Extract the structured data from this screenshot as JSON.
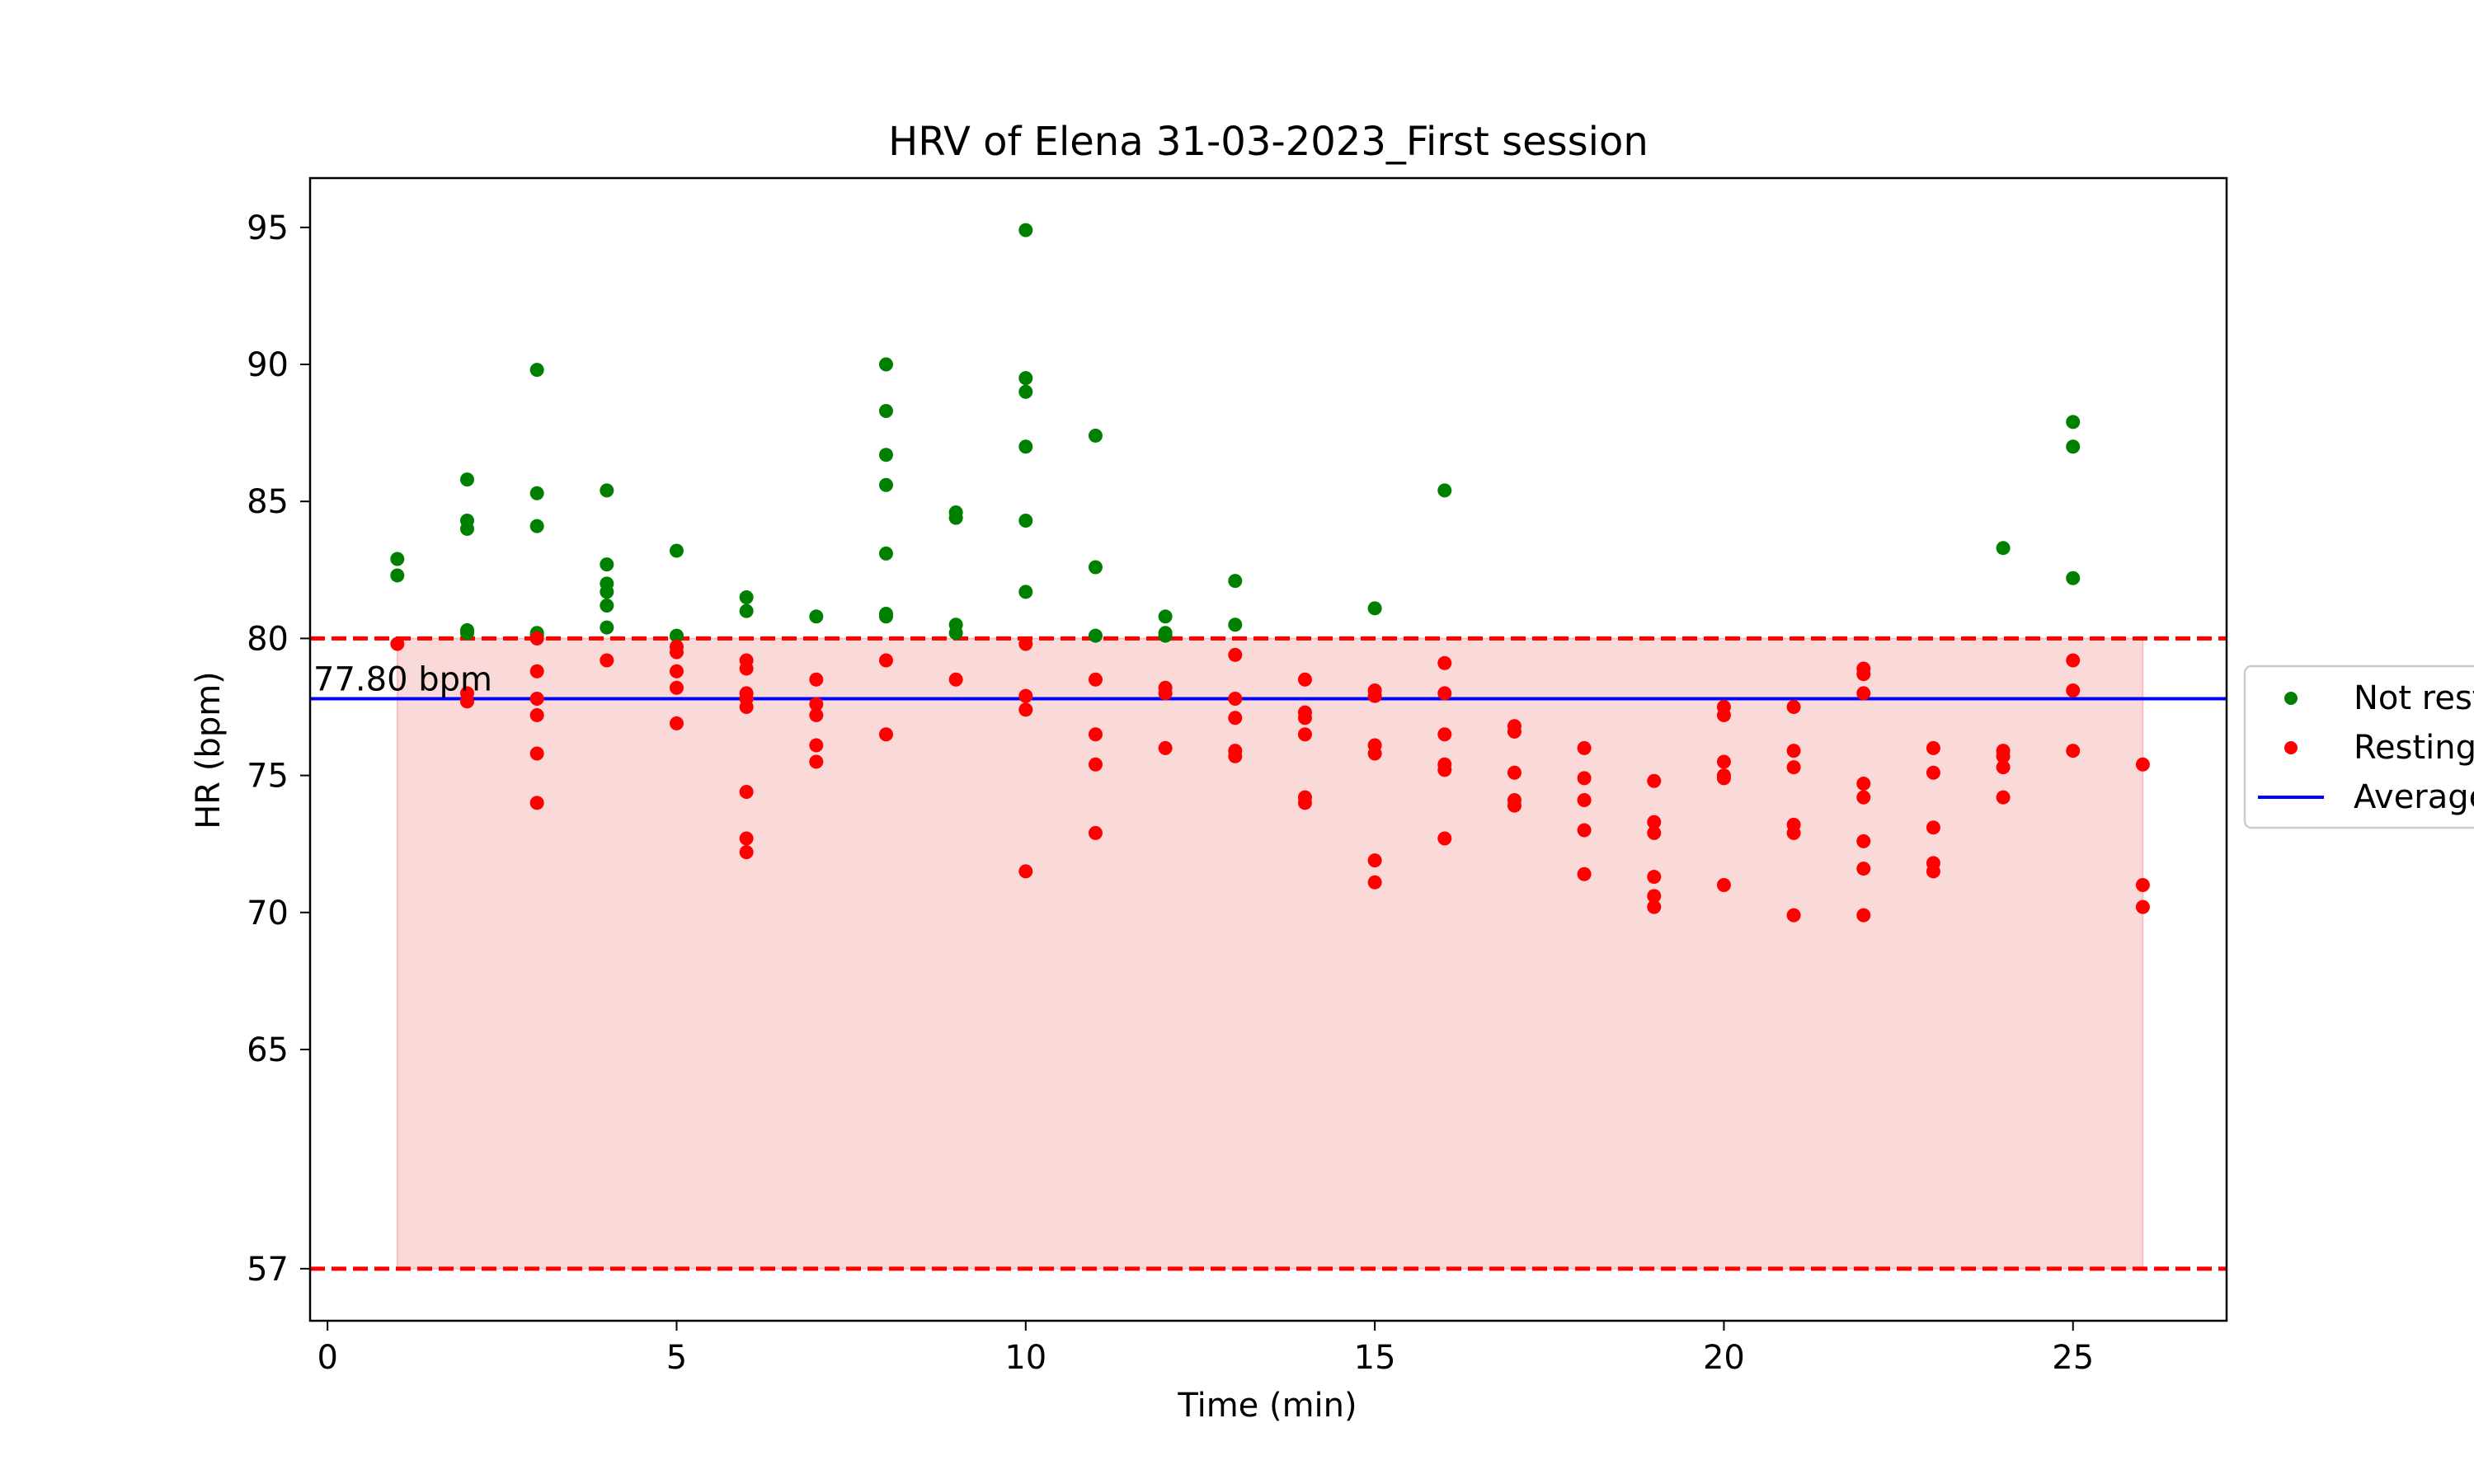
{
  "chart_data": {
    "type": "scatter",
    "title": "HRV of Elena 31-03-2023_First session",
    "xlabel": "Time (min)",
    "ylabel": "HR (bpm)",
    "xlim": [
      -0.25,
      27.2
    ],
    "ylim": [
      55.1,
      96.8
    ],
    "xticks": [
      0,
      5,
      10,
      15,
      20,
      25
    ],
    "yticks": [
      57,
      65,
      70,
      75,
      80,
      85,
      90,
      95
    ],
    "grid": false,
    "legend_position": "right, outside plot (clipped)",
    "series": [
      {
        "name": "Not resting",
        "color": "#008000",
        "points": [
          [
            1,
            82.9
          ],
          [
            1,
            82.3
          ],
          [
            2,
            85.8
          ],
          [
            2,
            84.3
          ],
          [
            2,
            84.0
          ],
          [
            2,
            80.3
          ],
          [
            2,
            80.2
          ],
          [
            3,
            89.8
          ],
          [
            3,
            85.3
          ],
          [
            3,
            84.1
          ],
          [
            3,
            80.2
          ],
          [
            3,
            80.1
          ],
          [
            4,
            85.4
          ],
          [
            4,
            82.7
          ],
          [
            4,
            82.0
          ],
          [
            4,
            81.7
          ],
          [
            4,
            81.2
          ],
          [
            4,
            80.4
          ],
          [
            5,
            83.2
          ],
          [
            5,
            80.1
          ],
          [
            6,
            81.5
          ],
          [
            6,
            81.0
          ],
          [
            7,
            80.8
          ],
          [
            8,
            90.0
          ],
          [
            8,
            88.3
          ],
          [
            8,
            86.7
          ],
          [
            8,
            85.6
          ],
          [
            8,
            83.1
          ],
          [
            8,
            80.9
          ],
          [
            8,
            80.8
          ],
          [
            9,
            84.6
          ],
          [
            9,
            84.4
          ],
          [
            9,
            80.5
          ],
          [
            9,
            80.2
          ],
          [
            10,
            94.9
          ],
          [
            10,
            89.5
          ],
          [
            10,
            89.0
          ],
          [
            10,
            87.0
          ],
          [
            10,
            84.3
          ],
          [
            10,
            81.7
          ],
          [
            11,
            87.4
          ],
          [
            11,
            82.6
          ],
          [
            11,
            80.1
          ],
          [
            12,
            80.8
          ],
          [
            12,
            80.2
          ],
          [
            12,
            80.1
          ],
          [
            13,
            82.1
          ],
          [
            13,
            80.5
          ],
          [
            15,
            81.1
          ],
          [
            16,
            85.4
          ],
          [
            24,
            83.3
          ],
          [
            25,
            87.9
          ],
          [
            25,
            87.0
          ],
          [
            25,
            82.2
          ]
        ]
      },
      {
        "name": "Resting",
        "color": "#ff0000",
        "points": [
          [
            1,
            79.8
          ],
          [
            2,
            78.0
          ],
          [
            2,
            77.7
          ],
          [
            3,
            80.0
          ],
          [
            3,
            78.8
          ],
          [
            3,
            77.8
          ],
          [
            3,
            77.2
          ],
          [
            3,
            75.8
          ],
          [
            3,
            74.0
          ],
          [
            4,
            79.2
          ],
          [
            5,
            79.7
          ],
          [
            5,
            79.5
          ],
          [
            5,
            78.8
          ],
          [
            5,
            78.2
          ],
          [
            5,
            76.9
          ],
          [
            6,
            79.2
          ],
          [
            6,
            78.9
          ],
          [
            6,
            78.0
          ],
          [
            6,
            77.8
          ],
          [
            6,
            77.5
          ],
          [
            6,
            74.4
          ],
          [
            6,
            72.7
          ],
          [
            6,
            72.2
          ],
          [
            7,
            78.5
          ],
          [
            7,
            77.6
          ],
          [
            7,
            77.2
          ],
          [
            7,
            76.1
          ],
          [
            7,
            75.5
          ],
          [
            8,
            79.2
          ],
          [
            8,
            76.5
          ],
          [
            9,
            78.5
          ],
          [
            10,
            79.8
          ],
          [
            10,
            77.9
          ],
          [
            10,
            77.4
          ],
          [
            10,
            71.5
          ],
          [
            11,
            78.5
          ],
          [
            11,
            76.5
          ],
          [
            11,
            75.4
          ],
          [
            11,
            72.9
          ],
          [
            12,
            78.2
          ],
          [
            12,
            78.0
          ],
          [
            12,
            76.0
          ],
          [
            13,
            79.4
          ],
          [
            13,
            77.8
          ],
          [
            13,
            77.1
          ],
          [
            13,
            75.9
          ],
          [
            13,
            75.7
          ],
          [
            14,
            78.5
          ],
          [
            14,
            77.3
          ],
          [
            14,
            77.1
          ],
          [
            14,
            76.5
          ],
          [
            14,
            74.2
          ],
          [
            14,
            74.0
          ],
          [
            15,
            78.1
          ],
          [
            15,
            77.9
          ],
          [
            15,
            76.1
          ],
          [
            15,
            75.8
          ],
          [
            15,
            71.9
          ],
          [
            15,
            71.1
          ],
          [
            16,
            79.1
          ],
          [
            16,
            78.0
          ],
          [
            16,
            76.5
          ],
          [
            16,
            75.4
          ],
          [
            16,
            75.2
          ],
          [
            16,
            72.7
          ],
          [
            17,
            76.8
          ],
          [
            17,
            76.6
          ],
          [
            17,
            75.1
          ],
          [
            17,
            74.1
          ],
          [
            17,
            73.9
          ],
          [
            18,
            76.0
          ],
          [
            18,
            74.9
          ],
          [
            18,
            74.1
          ],
          [
            18,
            73.0
          ],
          [
            18,
            71.4
          ],
          [
            19,
            74.8
          ],
          [
            19,
            73.3
          ],
          [
            19,
            72.9
          ],
          [
            19,
            71.3
          ],
          [
            19,
            70.6
          ],
          [
            19,
            70.2
          ],
          [
            20,
            77.5
          ],
          [
            20,
            77.2
          ],
          [
            20,
            75.5
          ],
          [
            20,
            75.0
          ],
          [
            20,
            74.9
          ],
          [
            20,
            71.0
          ],
          [
            21,
            77.5
          ],
          [
            21,
            75.9
          ],
          [
            21,
            75.3
          ],
          [
            21,
            73.2
          ],
          [
            21,
            72.9
          ],
          [
            21,
            69.9
          ],
          [
            22,
            78.9
          ],
          [
            22,
            78.7
          ],
          [
            22,
            78.0
          ],
          [
            22,
            74.7
          ],
          [
            22,
            74.2
          ],
          [
            22,
            72.6
          ],
          [
            22,
            71.6
          ],
          [
            22,
            69.9
          ],
          [
            23,
            76.0
          ],
          [
            23,
            75.1
          ],
          [
            23,
            73.1
          ],
          [
            23,
            71.8
          ],
          [
            23,
            71.5
          ],
          [
            24,
            75.9
          ],
          [
            24,
            75.7
          ],
          [
            24,
            75.3
          ],
          [
            24,
            74.2
          ],
          [
            25,
            79.2
          ],
          [
            25,
            78.1
          ],
          [
            25,
            75.9
          ],
          [
            26,
            75.4
          ],
          [
            26,
            71.0
          ],
          [
            26,
            70.2
          ]
        ]
      }
    ],
    "average": {
      "name": "Average",
      "value": 77.8,
      "label": "77.80 bpm",
      "color": "#0000ff"
    },
    "thresholds": {
      "upper": 80,
      "lower": 57,
      "color": "#ff0000",
      "style": "dashed"
    },
    "resting_zone": {
      "x_range": [
        1,
        26
      ],
      "y_range": [
        57,
        80
      ],
      "fill": "#f08080"
    }
  },
  "legend": {
    "items": [
      {
        "label": "Not resting",
        "marker": "dot",
        "color": "#008000"
      },
      {
        "label": "Resting",
        "marker": "dot",
        "color": "#ff0000"
      },
      {
        "label": "Average",
        "marker": "line",
        "color": "#0000ff"
      }
    ]
  }
}
